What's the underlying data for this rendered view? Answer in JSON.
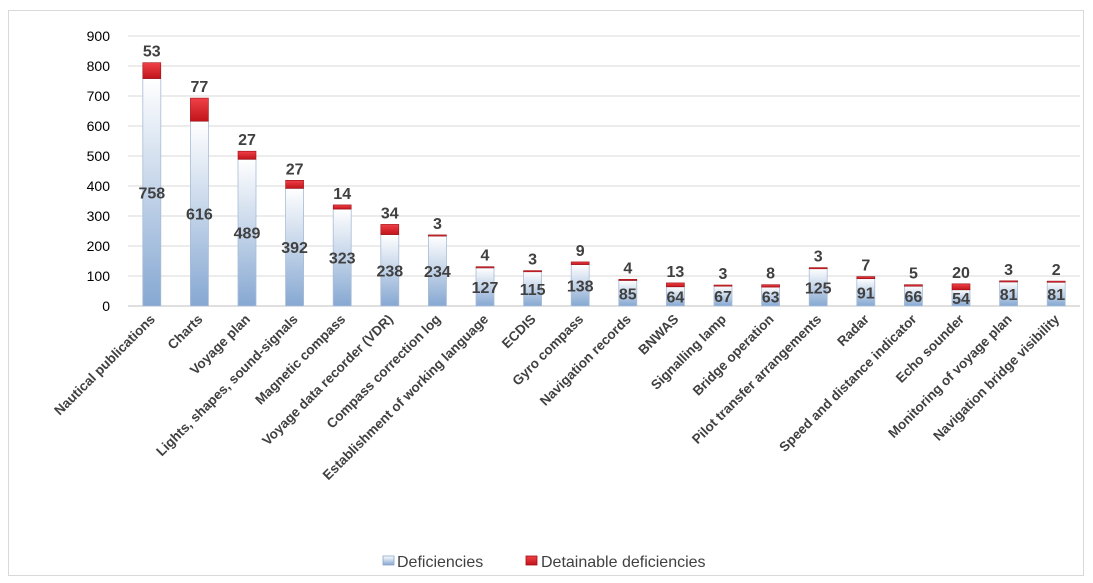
{
  "chart_data": {
    "type": "bar",
    "stacked": true,
    "categories": [
      "Nautical publications",
      "Charts",
      "Voyage plan",
      "Lights, shapes, sound-signals",
      "Magnetic compass",
      "Voyage data recorder (VDR)",
      "Compass correction log",
      "Establishment of working language",
      "ECDIS",
      "Gyro compass",
      "Navigation records",
      "BNWAS",
      "Signalling lamp",
      "Bridge operation",
      "Pilot transfer arrangements",
      "Radar",
      "Speed and distance indicator",
      "Echo sounder",
      "Monitoring of voyage plan",
      "Navigation bridge visibility"
    ],
    "series": [
      {
        "name": "Deficiencies",
        "values": [
          758,
          616,
          489,
          392,
          323,
          238,
          234,
          127,
          115,
          138,
          85,
          64,
          67,
          63,
          125,
          91,
          66,
          54,
          81,
          81
        ],
        "color": "#8fb0d6"
      },
      {
        "name": "Detainable deficiencies",
        "values": [
          53,
          77,
          27,
          27,
          14,
          34,
          3,
          4,
          3,
          9,
          4,
          13,
          3,
          8,
          3,
          7,
          5,
          20,
          3,
          2
        ],
        "color": "#d71920"
      }
    ],
    "ylim": [
      0,
      900
    ],
    "yticks": [
      "0",
      "100",
      "200",
      "300",
      "400",
      "500",
      "600",
      "700",
      "800",
      "900"
    ],
    "grid": true,
    "legend_position": "bottom"
  }
}
